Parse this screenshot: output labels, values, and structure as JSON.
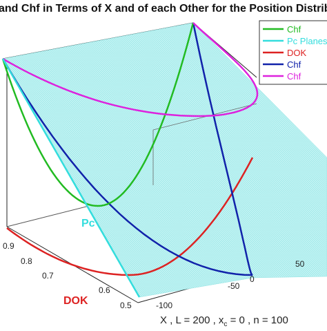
{
  "chart_data": {
    "type": "line",
    "projection": "3d",
    "title": "and Chf in Terms of X and of each Other for the Position Distrib",
    "plane_fill": "#bff3f3",
    "legend": {
      "placement": "top-right",
      "entries": [
        {
          "label": "Chf",
          "color": "#22bb22"
        },
        {
          "label": "Pc Planes",
          "color": "#33dddd"
        },
        {
          "label": "DOK",
          "color": "#dd2222"
        },
        {
          "label": "Chf",
          "color": "#1122aa"
        },
        {
          "label": "Chf",
          "color": "#dd22dd"
        }
      ]
    },
    "axes": {
      "dok": {
        "label": "DOK",
        "color": "#dd2222",
        "range": [
          0.5,
          1.0
        ],
        "ticks": [
          "0.5",
          "0.6",
          "0.7",
          "0.8",
          "0.9"
        ]
      },
      "x": {
        "label": "X",
        "range": [
          -100,
          100
        ],
        "ticks": [
          "-100",
          "-50",
          "0",
          "50"
        ]
      },
      "pc": {
        "label": "Pc",
        "color": "#33dddd"
      }
    },
    "annotation": "X ,    L = 200 ,    x_c = 0 ,    n = 100",
    "parameters": {
      "L": 200,
      "x_c": 0,
      "n": 100
    },
    "series": [
      {
        "name": "DOK",
        "color": "#dd2222",
        "x": [
          -100,
          -75,
          -50,
          -25,
          0,
          25,
          50,
          75,
          100
        ],
        "y": [
          1.0,
          0.72,
          0.6,
          0.53,
          0.5,
          0.53,
          0.6,
          0.72,
          1.0
        ]
      },
      {
        "name": "Chf",
        "color": "#1122aa",
        "x": [
          -100,
          -75,
          -50,
          -25,
          0,
          25,
          50,
          75,
          100
        ],
        "y": [
          1.0,
          0.72,
          0.6,
          0.53,
          0.5,
          0.53,
          0.6,
          0.72,
          1.0
        ]
      },
      {
        "name": "Chf",
        "color": "#22bb22",
        "x": [
          -100,
          -75,
          -50,
          -25,
          0,
          25,
          50,
          75,
          100
        ],
        "y": [
          1.0,
          0.72,
          0.6,
          0.53,
          0.5,
          0.53,
          0.6,
          0.72,
          1.0
        ]
      },
      {
        "name": "Chf",
        "color": "#dd22dd",
        "x": [
          -100,
          -75,
          -50,
          -25,
          0,
          25,
          50,
          75,
          100
        ],
        "y": [
          1.0,
          0.72,
          0.6,
          0.53,
          0.5,
          0.53,
          0.6,
          0.72,
          1.0
        ]
      }
    ]
  }
}
